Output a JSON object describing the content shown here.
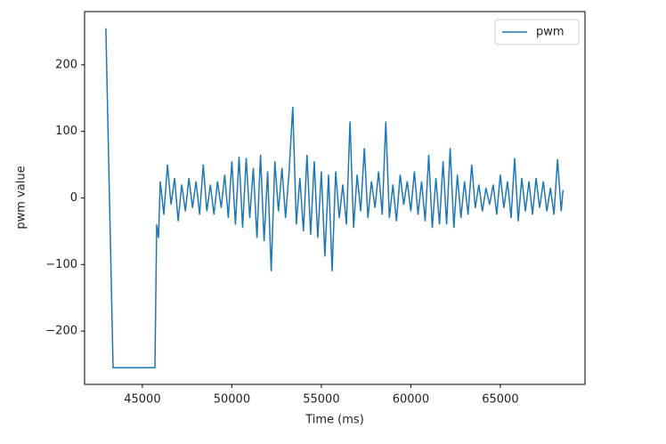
{
  "chart_data": {
    "type": "line",
    "xlabel": "Time (ms)",
    "ylabel": "pwm value",
    "x": [
      42960,
      43360,
      45700,
      45800,
      45900,
      46000,
      46200,
      46400,
      46600,
      46800,
      47000,
      47200,
      47400,
      47600,
      47800,
      48000,
      48200,
      48400,
      48600,
      48800,
      49000,
      49200,
      49400,
      49600,
      49800,
      50000,
      50200,
      50400,
      50600,
      50800,
      51000,
      51200,
      51400,
      51600,
      51800,
      52000,
      52200,
      52400,
      52600,
      52800,
      53000,
      53200,
      53400,
      53600,
      53800,
      54000,
      54200,
      54400,
      54600,
      54800,
      55000,
      55200,
      55400,
      55600,
      55800,
      56000,
      56200,
      56400,
      56600,
      56800,
      57000,
      57200,
      57400,
      57600,
      57800,
      58000,
      58200,
      58400,
      58600,
      58800,
      59000,
      59200,
      59400,
      59600,
      59800,
      60000,
      60200,
      60400,
      60600,
      60800,
      61000,
      61200,
      61400,
      61600,
      61800,
      62000,
      62200,
      62400,
      62600,
      62800,
      63000,
      63200,
      63400,
      63600,
      63800,
      64000,
      64200,
      64400,
      64600,
      64800,
      65000,
      65200,
      65400,
      65600,
      65800,
      66000,
      66200,
      66400,
      66600,
      66800,
      67000,
      67200,
      67400,
      67600,
      67800,
      68000,
      68200,
      68400,
      68500
    ],
    "series": [
      {
        "name": "pwm",
        "color": "#1f77b4",
        "values": [
          255,
          -255,
          -255,
          -40,
          -60,
          25,
          -25,
          50,
          -10,
          30,
          -35,
          20,
          -20,
          30,
          -15,
          25,
          -25,
          50,
          -20,
          20,
          -25,
          25,
          -15,
          35,
          -30,
          55,
          -40,
          62,
          -45,
          60,
          -30,
          45,
          -60,
          65,
          -65,
          40,
          -110,
          55,
          -20,
          45,
          -30,
          40,
          137,
          -40,
          30,
          -50,
          65,
          -55,
          55,
          -60,
          40,
          -88,
          35,
          -110,
          40,
          -30,
          20,
          -40,
          115,
          -45,
          35,
          -20,
          75,
          -30,
          25,
          -15,
          40,
          -25,
          115,
          -30,
          20,
          -35,
          35,
          -10,
          25,
          -20,
          40,
          -25,
          25,
          -35,
          65,
          -45,
          30,
          -40,
          55,
          -40,
          75,
          -45,
          35,
          -30,
          25,
          -25,
          50,
          -15,
          20,
          -20,
          15,
          -10,
          20,
          -25,
          35,
          -15,
          25,
          -30,
          60,
          -35,
          30,
          -20,
          25,
          -25,
          30,
          -15,
          25,
          -20,
          15,
          -25,
          58,
          -20,
          12
        ]
      }
    ],
    "xlim": [
      41770,
      69730
    ],
    "ylim": [
      -280,
      280
    ],
    "xticks": [
      45000,
      50000,
      55000,
      60000,
      65000
    ],
    "yticks": [
      {
        "value": -200,
        "label": "−200"
      },
      {
        "value": -100,
        "label": "−100"
      },
      0,
      100,
      200
    ],
    "legend": "upper right"
  }
}
